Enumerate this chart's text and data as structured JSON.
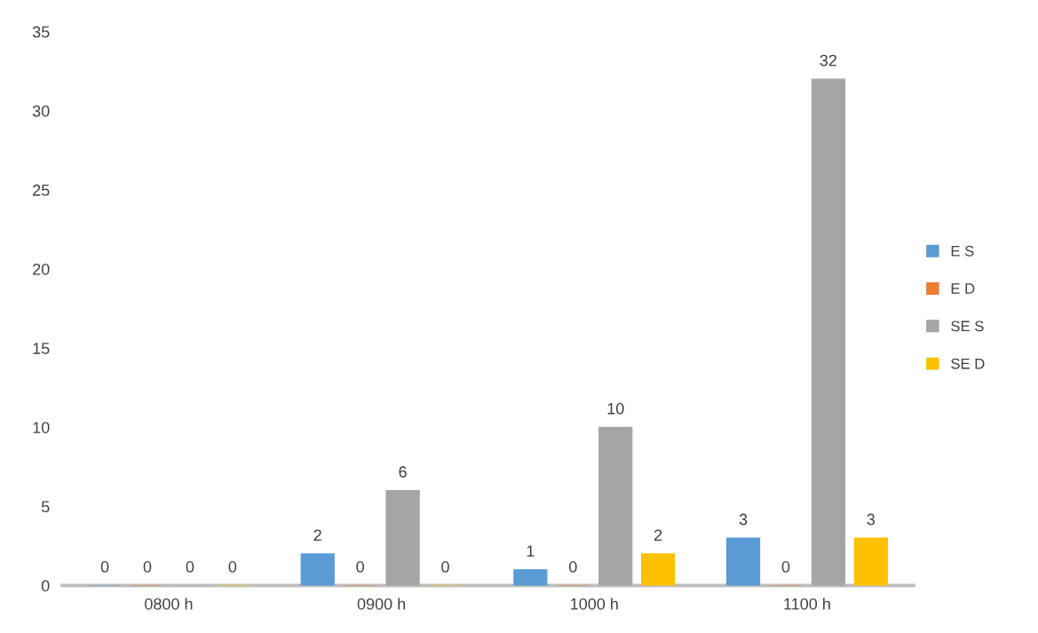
{
  "chart_data": {
    "type": "bar",
    "categories": [
      "0800 h",
      "0900 h",
      "1000 h",
      "1100 h"
    ],
    "series": [
      {
        "name": "E S",
        "color": "#5b9bd5",
        "values": [
          0,
          2,
          1,
          3
        ]
      },
      {
        "name": "E D",
        "color": "#ed7d31",
        "values": [
          0,
          0,
          0,
          0
        ]
      },
      {
        "name": "SE S",
        "color": "#a5a5a5",
        "values": [
          0,
          6,
          10,
          32
        ]
      },
      {
        "name": "SE D",
        "color": "#ffc000",
        "values": [
          0,
          0,
          2,
          3
        ]
      }
    ],
    "ylim": [
      0,
      35
    ],
    "yticks": [
      0,
      5,
      10,
      15,
      20,
      25,
      30,
      35
    ],
    "data_labels": true,
    "legend": "right",
    "grid": false
  }
}
